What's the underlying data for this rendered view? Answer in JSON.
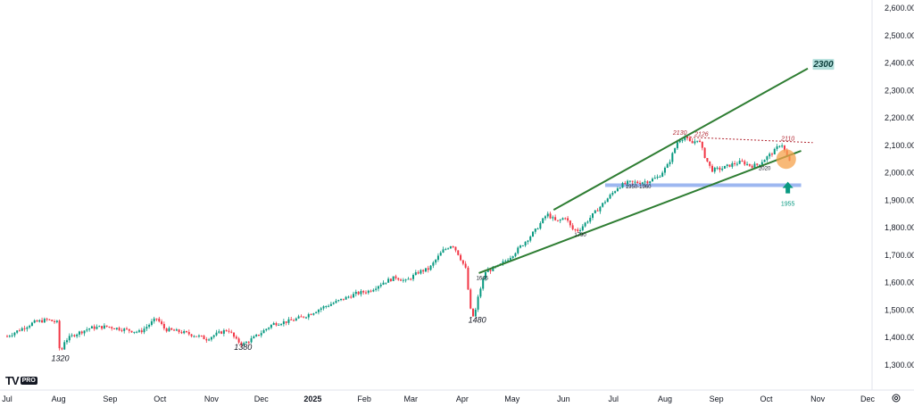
{
  "brand": {
    "logo_mark": "TV",
    "logo_badge": "PRO"
  },
  "icons": {
    "settings": "gear-icon"
  },
  "colors": {
    "up": "#089981",
    "down": "#f23645",
    "trend": "#2e7d32",
    "resistance": "#b22833",
    "support_band": "#9db7f0",
    "highlight": "#f5a24b",
    "arrow": "#089981",
    "target_bg": "#b2dfdb"
  },
  "chart_data": {
    "type": "candlestick",
    "title": "",
    "xlabel": "",
    "ylabel": "",
    "ylim": [
      1250,
      2640
    ],
    "y_ticks": [
      "2,600.00",
      "2,500.00",
      "2,400.00",
      "2,300.00",
      "2,200.00",
      "2,100.00",
      "2,000.00",
      "1,900.00",
      "1,800.00",
      "1,700.00",
      "1,600.00",
      "1,500.00",
      "1,400.00",
      "1,300.00"
    ],
    "x_ticks": [
      {
        "label": "Jul",
        "t": 0
      },
      {
        "label": "Aug",
        "t": 31
      },
      {
        "label": "Sep",
        "t": 62
      },
      {
        "label": "Oct",
        "t": 92
      },
      {
        "label": "Nov",
        "t": 123
      },
      {
        "label": "Dec",
        "t": 153
      },
      {
        "label": "2025",
        "t": 184,
        "bold": true
      },
      {
        "label": "Feb",
        "t": 215
      },
      {
        "label": "Mar",
        "t": 243
      },
      {
        "label": "Apr",
        "t": 274
      },
      {
        "label": "May",
        "t": 304
      },
      {
        "label": "Jun",
        "t": 335
      },
      {
        "label": "Jul",
        "t": 365
      },
      {
        "label": "Aug",
        "t": 396
      },
      {
        "label": "Sep",
        "t": 427
      },
      {
        "label": "Oct",
        "t": 457
      },
      {
        "label": "Nov",
        "t": 488
      },
      {
        "label": "Dec",
        "t": 518
      }
    ],
    "price_path": [
      [
        0,
        1405
      ],
      [
        8,
        1430
      ],
      [
        16,
        1455
      ],
      [
        24,
        1465
      ],
      [
        30,
        1455
      ],
      [
        32,
        1330
      ],
      [
        34,
        1385
      ],
      [
        40,
        1410
      ],
      [
        50,
        1435
      ],
      [
        60,
        1440
      ],
      [
        70,
        1430
      ],
      [
        80,
        1420
      ],
      [
        90,
        1470
      ],
      [
        95,
        1430
      ],
      [
        105,
        1420
      ],
      [
        115,
        1405
      ],
      [
        120,
        1395
      ],
      [
        125,
        1410
      ],
      [
        133,
        1430
      ],
      [
        138,
        1390
      ],
      [
        142,
        1375
      ],
      [
        146,
        1390
      ],
      [
        150,
        1405
      ],
      [
        160,
        1450
      ],
      [
        170,
        1460
      ],
      [
        180,
        1480
      ],
      [
        190,
        1510
      ],
      [
        200,
        1535
      ],
      [
        210,
        1560
      ],
      [
        218,
        1570
      ],
      [
        226,
        1600
      ],
      [
        234,
        1620
      ],
      [
        240,
        1605
      ],
      [
        248,
        1640
      ],
      [
        254,
        1650
      ],
      [
        262,
        1715
      ],
      [
        268,
        1740
      ],
      [
        272,
        1700
      ],
      [
        276,
        1650
      ],
      [
        279,
        1500
      ],
      [
        281,
        1470
      ],
      [
        284,
        1560
      ],
      [
        288,
        1640
      ],
      [
        296,
        1660
      ],
      [
        304,
        1700
      ],
      [
        312,
        1750
      ],
      [
        318,
        1790
      ],
      [
        325,
        1850
      ],
      [
        331,
        1820
      ],
      [
        336,
        1840
      ],
      [
        340,
        1795
      ],
      [
        344,
        1790
      ],
      [
        350,
        1830
      ],
      [
        356,
        1870
      ],
      [
        362,
        1910
      ],
      [
        368,
        1950
      ],
      [
        374,
        1965
      ],
      [
        380,
        1965
      ],
      [
        386,
        1970
      ],
      [
        392,
        1985
      ],
      [
        398,
        2030
      ],
      [
        404,
        2120
      ],
      [
        408,
        2130
      ],
      [
        412,
        2105
      ],
      [
        416,
        2125
      ],
      [
        420,
        2060
      ],
      [
        424,
        2010
      ],
      [
        430,
        2015
      ],
      [
        436,
        2030
      ],
      [
        442,
        2040
      ],
      [
        448,
        2025
      ],
      [
        452,
        2030
      ],
      [
        458,
        2060
      ],
      [
        462,
        2080
      ],
      [
        466,
        2110
      ],
      [
        470,
        2050
      ],
      [
        472,
        2030
      ]
    ],
    "trend_lines": [
      {
        "name": "upper-channel",
        "from": {
          "t": 329,
          "p": 1865
        },
        "to": {
          "t": 482,
          "p": 2380
        }
      },
      {
        "name": "lower-channel",
        "from": {
          "t": 284,
          "p": 1635
        },
        "to": {
          "t": 478,
          "p": 2080
        }
      },
      {
        "name": "resistance-dotted",
        "from": {
          "t": 409,
          "p": 2130
        },
        "to": {
          "t": 485,
          "p": 2110
        }
      }
    ],
    "support_band": {
      "from_t": 360,
      "to_t": 478,
      "p": 1955
    },
    "highlight_point": {
      "t": 469,
      "p": 2050
    },
    "arrow_point": {
      "t": 470,
      "p": 1935
    },
    "annotations": [
      {
        "text": "1320",
        "t": 32,
        "p": 1315,
        "style": "ann"
      },
      {
        "text": "1380",
        "t": 142,
        "p": 1355,
        "style": "ann"
      },
      {
        "text": "1480",
        "t": 283,
        "p": 1455,
        "style": "ann"
      },
      {
        "text": "1645",
        "t": 286,
        "p": 1610,
        "style": "ann-small"
      },
      {
        "text": "1790",
        "t": 345,
        "p": 1768,
        "style": "ann-small"
      },
      {
        "text": "1950-1960",
        "t": 380,
        "p": 1943,
        "style": "ann-small"
      },
      {
        "text": "2130",
        "t": 405,
        "p": 2138,
        "style": "ann-red"
      },
      {
        "text": "2126",
        "t": 418,
        "p": 2133,
        "style": "ann-red"
      },
      {
        "text": "2110",
        "t": 470,
        "p": 2118,
        "style": "ann-red"
      },
      {
        "text": "2020",
        "t": 456,
        "p": 2010,
        "style": "ann-small"
      },
      {
        "text": "1955",
        "t": 470,
        "p": 1880,
        "style": "ann-teal"
      }
    ],
    "target": {
      "text": "2300",
      "t": 486,
      "p": 2385
    }
  }
}
